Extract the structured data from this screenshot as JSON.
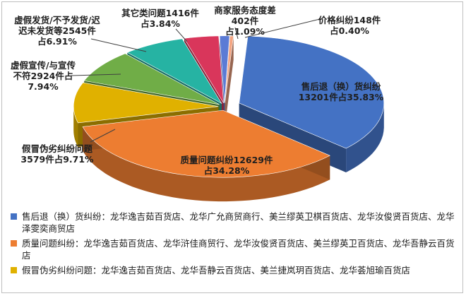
{
  "chart_data": {
    "type": "pie",
    "subtype": "3d-exploded",
    "slices": [
      {
        "name": "售后退（换）货纠纷",
        "count": 13201,
        "percent": 35.83,
        "label_lines": [
          "售后退（换）货纠纷",
          "13201件占35.83%"
        ],
        "color": "#4472C4"
      },
      {
        "name": "质量问题纠纷",
        "count": 12629,
        "percent": 34.28,
        "label_lines": [
          "质量问题纠纷12629件",
          "占34.28%"
        ],
        "color": "#ED7D31"
      },
      {
        "name": "假冒伪劣纠纷问题",
        "count": 3579,
        "percent": 9.71,
        "label_lines": [
          "假冒伪劣纠纷问题",
          "3579件占9.71%"
        ],
        "color": "#E0B100"
      },
      {
        "name": "虚假宣传/与宣传不符",
        "count": 2924,
        "percent": 7.94,
        "label_lines": [
          "虚假宣传/与宣传",
          "不符2924件占",
          "7.94%"
        ],
        "color": "#70AD47"
      },
      {
        "name": "虚假发货/不予发货/迟迟未发货等",
        "count": 2545,
        "percent": 6.91,
        "label_lines": [
          "虚假发货/不予发货/迟",
          "迟未发货等2545件",
          "占6.91%"
        ],
        "color": "#26B3A3"
      },
      {
        "name": "其它类问题",
        "count": 1416,
        "percent": 3.84,
        "label_lines": [
          "其它类问题1416件",
          "占3.84%"
        ],
        "color": "#D9365B"
      },
      {
        "name": "商家服务态度差",
        "count": 402,
        "percent": 1.09,
        "label_lines": [
          "商家服务态度差",
          "402件",
          "占1.09%"
        ],
        "color": "#5B7BD5"
      },
      {
        "name": "价格纠纷",
        "count": 148,
        "percent": 0.4,
        "label_lines": [
          "价格纠纷148件",
          "占0.40%"
        ],
        "color": "#F4A582"
      }
    ]
  },
  "legend": {
    "items": [
      {
        "text": "售后退（换）货纠纷：龙华逸吉茹百货店、龙华广允商贸商行、美兰缪英卫棋百货店、龙华汝俊贤百货店、龙华泽雯奕商贸店",
        "color": "#4472C4"
      },
      {
        "text": "质量问题纠纷：龙华逸吉茹百货店、龙华浒佳商贸行、龙华汝俊贤百货店、美兰缪英卫百货店、龙华吾静云百货店",
        "color": "#ED7D31"
      },
      {
        "text": "假冒伪劣纠纷问题：龙华逸吉茹百货店、龙华吾静云百货店、美兰捷岚玥百货店、龙华荟旭瑜百货店",
        "color": "#E0B100"
      }
    ]
  }
}
